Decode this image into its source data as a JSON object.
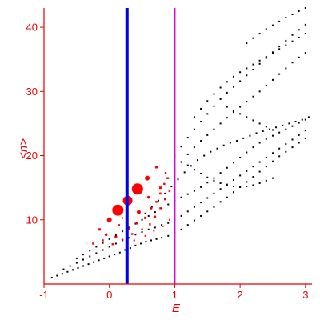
{
  "chart_data": {
    "type": "scatter",
    "title": "",
    "xlabel": "E",
    "ylabel": "<n>",
    "xlim": [
      -1.0,
      3.1
    ],
    "ylim": [
      0,
      43
    ],
    "xticks": [
      -1,
      0,
      1,
      2,
      3
    ],
    "yticks": [
      10,
      20,
      30,
      40
    ],
    "grid": false,
    "colors": {
      "axes": "#e60000",
      "black_points": "#000000",
      "red_points": "#ff0000",
      "vline_blue": "#0000ee",
      "vline_magenta": "#dd00dd"
    },
    "vlines": [
      {
        "x": 0.27,
        "color": "#0000ee",
        "style": "thick"
      },
      {
        "x": 1.0,
        "color": "#dd00dd",
        "style": "thin"
      }
    ],
    "series": [
      {
        "marker": "small-square",
        "color": "#000000",
        "points": [
          [
            -0.88,
            1.0
          ],
          [
            -0.8,
            1.3
          ],
          [
            -0.72,
            1.6
          ],
          [
            -0.64,
            1.9
          ],
          [
            -0.56,
            2.2
          ],
          [
            -0.48,
            2.5
          ],
          [
            -0.4,
            2.8
          ],
          [
            -0.32,
            3.1
          ],
          [
            -0.24,
            3.4
          ],
          [
            -0.16,
            3.7
          ],
          [
            -0.08,
            4.0
          ],
          [
            0.0,
            4.3
          ],
          [
            0.08,
            4.6
          ],
          [
            0.16,
            4.9
          ],
          [
            0.24,
            5.3
          ],
          [
            0.32,
            5.6
          ],
          [
            0.4,
            6.0
          ],
          [
            0.48,
            6.3
          ],
          [
            0.56,
            6.6
          ],
          [
            0.64,
            6.8
          ],
          [
            0.72,
            7.0
          ],
          [
            0.8,
            7.2
          ],
          [
            0.9,
            7.5
          ],
          [
            1.0,
            7.9
          ],
          [
            1.1,
            8.5
          ],
          [
            1.2,
            9.2
          ],
          [
            1.3,
            9.9
          ],
          [
            1.4,
            10.6
          ],
          [
            1.5,
            11.3
          ],
          [
            1.6,
            12.0
          ],
          [
            1.7,
            12.8
          ],
          [
            1.8,
            13.5
          ],
          [
            1.9,
            14.3
          ],
          [
            2.0,
            15.1
          ],
          [
            2.1,
            15.9
          ],
          [
            2.2,
            16.7
          ],
          [
            2.3,
            17.5
          ],
          [
            2.4,
            18.3
          ],
          [
            2.5,
            19.1
          ],
          [
            2.6,
            19.9
          ],
          [
            2.7,
            20.6
          ],
          [
            2.8,
            21.3
          ],
          [
            2.9,
            22.0
          ],
          [
            3.0,
            22.7
          ],
          [
            -0.7,
            2.3
          ],
          [
            -0.6,
            2.8
          ],
          [
            -0.5,
            3.3
          ],
          [
            -0.4,
            3.8
          ],
          [
            -0.3,
            4.3
          ],
          [
            -0.2,
            4.8
          ],
          [
            -0.1,
            5.3
          ],
          [
            0.0,
            5.8
          ],
          [
            0.1,
            6.3
          ],
          [
            0.2,
            6.8
          ],
          [
            0.3,
            7.2
          ],
          [
            0.4,
            7.7
          ],
          [
            0.5,
            8.1
          ],
          [
            0.6,
            8.5
          ],
          [
            0.7,
            8.8
          ],
          [
            0.8,
            9.2
          ],
          [
            0.9,
            9.5
          ],
          [
            1.0,
            10.0
          ],
          [
            1.1,
            10.6
          ],
          [
            1.2,
            11.3
          ],
          [
            1.3,
            12.0
          ],
          [
            1.4,
            12.7
          ],
          [
            1.5,
            13.4
          ],
          [
            1.6,
            14.1
          ],
          [
            1.7,
            14.8
          ],
          [
            1.8,
            15.5
          ],
          [
            1.9,
            16.2
          ],
          [
            2.0,
            16.9
          ],
          [
            2.1,
            17.6
          ],
          [
            2.2,
            18.3
          ],
          [
            2.3,
            19.0
          ],
          [
            2.4,
            19.7
          ],
          [
            2.5,
            20.4
          ],
          [
            2.6,
            21.1
          ],
          [
            2.7,
            21.8
          ],
          [
            2.8,
            22.5
          ],
          [
            2.9,
            23.2
          ],
          [
            3.0,
            23.9
          ],
          [
            -0.5,
            4.0
          ],
          [
            -0.4,
            4.6
          ],
          [
            -0.3,
            5.2
          ],
          [
            -0.2,
            5.8
          ],
          [
            -0.1,
            6.4
          ],
          [
            0.0,
            7.0
          ],
          [
            0.1,
            7.6
          ],
          [
            0.2,
            8.2
          ],
          [
            0.3,
            8.8
          ],
          [
            0.4,
            9.4
          ],
          [
            0.5,
            10.0
          ],
          [
            0.6,
            10.6
          ],
          [
            0.7,
            11.2
          ],
          [
            0.8,
            11.8
          ],
          [
            0.9,
            12.4
          ],
          [
            1.0,
            13.0
          ],
          [
            1.1,
            13.5
          ],
          [
            1.2,
            14.0
          ],
          [
            1.3,
            14.5
          ],
          [
            1.4,
            15.1
          ],
          [
            1.5,
            15.8
          ],
          [
            1.6,
            16.5
          ],
          [
            1.7,
            17.3
          ],
          [
            1.8,
            18.1
          ],
          [
            1.9,
            18.9
          ],
          [
            2.0,
            19.7
          ],
          [
            2.1,
            20.5
          ],
          [
            2.2,
            21.3
          ],
          [
            2.3,
            22.0
          ],
          [
            2.4,
            22.6
          ],
          [
            2.5,
            23.1
          ],
          [
            2.6,
            23.6
          ],
          [
            2.7,
            24.1
          ],
          [
            2.8,
            24.6
          ],
          [
            2.9,
            25.1
          ],
          [
            3.0,
            25.6
          ],
          [
            0.55,
            11.0
          ],
          [
            0.65,
            12.0
          ],
          [
            0.75,
            13.0
          ],
          [
            0.85,
            14.1
          ],
          [
            0.95,
            15.2
          ],
          [
            1.05,
            16.3
          ],
          [
            1.15,
            17.4
          ],
          [
            1.25,
            18.4
          ],
          [
            1.35,
            19.3
          ],
          [
            1.45,
            20.0
          ],
          [
            1.55,
            20.6
          ],
          [
            1.65,
            21.1
          ],
          [
            1.75,
            21.6
          ],
          [
            1.85,
            22.0
          ],
          [
            1.95,
            22.3
          ],
          [
            2.05,
            22.7
          ],
          [
            2.15,
            23.1
          ],
          [
            2.25,
            23.5
          ],
          [
            2.35,
            23.8
          ],
          [
            2.45,
            24.1
          ],
          [
            2.55,
            24.4
          ],
          [
            2.65,
            24.7
          ],
          [
            2.75,
            25.0
          ],
          [
            2.85,
            25.3
          ],
          [
            2.95,
            25.6
          ],
          [
            3.05,
            26.0
          ],
          [
            0.9,
            16.5
          ],
          [
            1.0,
            17.8
          ],
          [
            1.1,
            19.0
          ],
          [
            1.2,
            20.2
          ],
          [
            1.3,
            21.3
          ],
          [
            1.4,
            22.3
          ],
          [
            1.5,
            23.2
          ],
          [
            1.6,
            24.1
          ],
          [
            1.7,
            25.0
          ],
          [
            1.8,
            25.9
          ],
          [
            1.9,
            26.8
          ],
          [
            2.0,
            27.6
          ],
          [
            2.1,
            28.4
          ],
          [
            2.2,
            29.2
          ],
          [
            2.3,
            30.0
          ],
          [
            2.4,
            30.9
          ],
          [
            2.5,
            31.8
          ],
          [
            2.6,
            32.7
          ],
          [
            2.7,
            33.6
          ],
          [
            2.8,
            34.5
          ],
          [
            2.9,
            35.3
          ],
          [
            3.0,
            36.0
          ],
          [
            1.0,
            20.0
          ],
          [
            1.1,
            21.4
          ],
          [
            1.2,
            22.8
          ],
          [
            1.3,
            24.1
          ],
          [
            1.4,
            25.3
          ],
          [
            1.5,
            26.5
          ],
          [
            1.6,
            27.7
          ],
          [
            1.7,
            28.8
          ],
          [
            1.8,
            29.8
          ],
          [
            1.9,
            30.7
          ],
          [
            2.0,
            31.6
          ],
          [
            2.1,
            32.5
          ],
          [
            2.2,
            33.4
          ],
          [
            2.3,
            34.3
          ],
          [
            2.4,
            35.2
          ],
          [
            2.5,
            36.1
          ],
          [
            2.6,
            37.0
          ],
          [
            2.7,
            37.9
          ],
          [
            2.8,
            38.8
          ],
          [
            2.9,
            39.6
          ],
          [
            3.0,
            40.4
          ],
          [
            1.3,
            26.0
          ],
          [
            1.4,
            27.3
          ],
          [
            1.5,
            28.5
          ],
          [
            1.6,
            29.6
          ],
          [
            1.7,
            30.6
          ],
          [
            1.8,
            31.5
          ],
          [
            1.9,
            32.3
          ],
          [
            2.0,
            33.0
          ],
          [
            2.1,
            33.6
          ],
          [
            2.2,
            34.2
          ],
          [
            2.3,
            34.8
          ],
          [
            2.4,
            35.4
          ],
          [
            2.5,
            36.0
          ],
          [
            2.6,
            36.6
          ],
          [
            2.7,
            37.2
          ],
          [
            2.8,
            37.8
          ],
          [
            2.9,
            38.4
          ],
          [
            3.0,
            39.0
          ],
          [
            1.8,
            27.6
          ],
          [
            1.9,
            27.0
          ],
          [
            2.0,
            26.5
          ],
          [
            2.1,
            26.0
          ],
          [
            2.2,
            25.5
          ],
          [
            2.3,
            25.0
          ],
          [
            2.4,
            24.5
          ],
          [
            2.5,
            24.0
          ],
          [
            2.1,
            37.5
          ],
          [
            2.2,
            38.3
          ],
          [
            2.3,
            39.0
          ],
          [
            2.4,
            39.7
          ],
          [
            2.5,
            40.3
          ],
          [
            2.6,
            40.9
          ],
          [
            2.7,
            41.5
          ],
          [
            2.8,
            42.0
          ],
          [
            2.9,
            42.5
          ],
          [
            3.0,
            43.0
          ],
          [
            1.2,
            18.5
          ],
          [
            1.3,
            17.8
          ],
          [
            1.4,
            17.2
          ],
          [
            1.5,
            16.6
          ],
          [
            1.6,
            16.1
          ],
          [
            1.7,
            15.7
          ],
          [
            1.8,
            15.4
          ],
          [
            1.9,
            15.2
          ],
          [
            2.0,
            15.1
          ],
          [
            2.1,
            15.2
          ],
          [
            2.2,
            15.4
          ],
          [
            2.3,
            15.7
          ],
          [
            2.4,
            16.1
          ],
          [
            2.5,
            16.5
          ]
        ]
      },
      {
        "marker": "filled-circle",
        "color": "#ff0000",
        "points": [
          [
            0.13,
            11.5,
            7
          ],
          [
            0.28,
            13.0,
            6
          ],
          [
            0.43,
            14.8,
            7
          ],
          [
            0.58,
            16.5,
            3
          ],
          [
            0.72,
            18.2,
            1.5
          ],
          [
            0.0,
            10.0,
            3
          ],
          [
            0.45,
            11.2,
            2.5
          ],
          [
            0.6,
            13.5,
            1.8
          ],
          [
            0.78,
            15.0,
            1.5
          ],
          [
            0.86,
            17.3,
            1.2
          ],
          [
            -0.15,
            8.5,
            1.5
          ],
          [
            -0.05,
            7.7,
            1.8
          ],
          [
            0.1,
            7.3,
            1.6
          ],
          [
            0.3,
            8.6,
            1.6
          ],
          [
            0.42,
            9.5,
            1.8
          ],
          [
            0.55,
            10.3,
            1.5
          ],
          [
            0.64,
            11.8,
            1.4
          ],
          [
            0.72,
            12.8,
            1.3
          ],
          [
            0.78,
            14.1,
            1.3
          ],
          [
            0.84,
            15.6,
            1.2
          ],
          [
            0.88,
            16.5,
            1.2
          ],
          [
            -0.25,
            6.3,
            1.2
          ],
          [
            -0.1,
            6.8,
            1.2
          ],
          [
            0.05,
            6.2,
            1.2
          ],
          [
            0.2,
            6.9,
            1.2
          ],
          [
            0.35,
            7.8,
            1.2
          ],
          [
            0.5,
            8.5,
            1.2
          ],
          [
            0.62,
            9.3,
            1.2
          ],
          [
            0.7,
            10.5,
            1.2
          ],
          [
            0.78,
            11.8,
            1.2
          ],
          [
            0.85,
            13.2,
            1.2
          ],
          [
            0.92,
            14.5,
            1.2
          ],
          [
            0.38,
            6.8,
            1.0
          ],
          [
            0.55,
            7.5,
            1.0
          ],
          [
            0.68,
            8.3,
            1.0
          ],
          [
            0.82,
            9.0,
            1.0
          ],
          [
            0.92,
            10.0,
            1.0
          ],
          [
            0.15,
            9.2,
            1.0
          ],
          [
            0.2,
            10.3,
            1.0
          ]
        ]
      }
    ]
  }
}
